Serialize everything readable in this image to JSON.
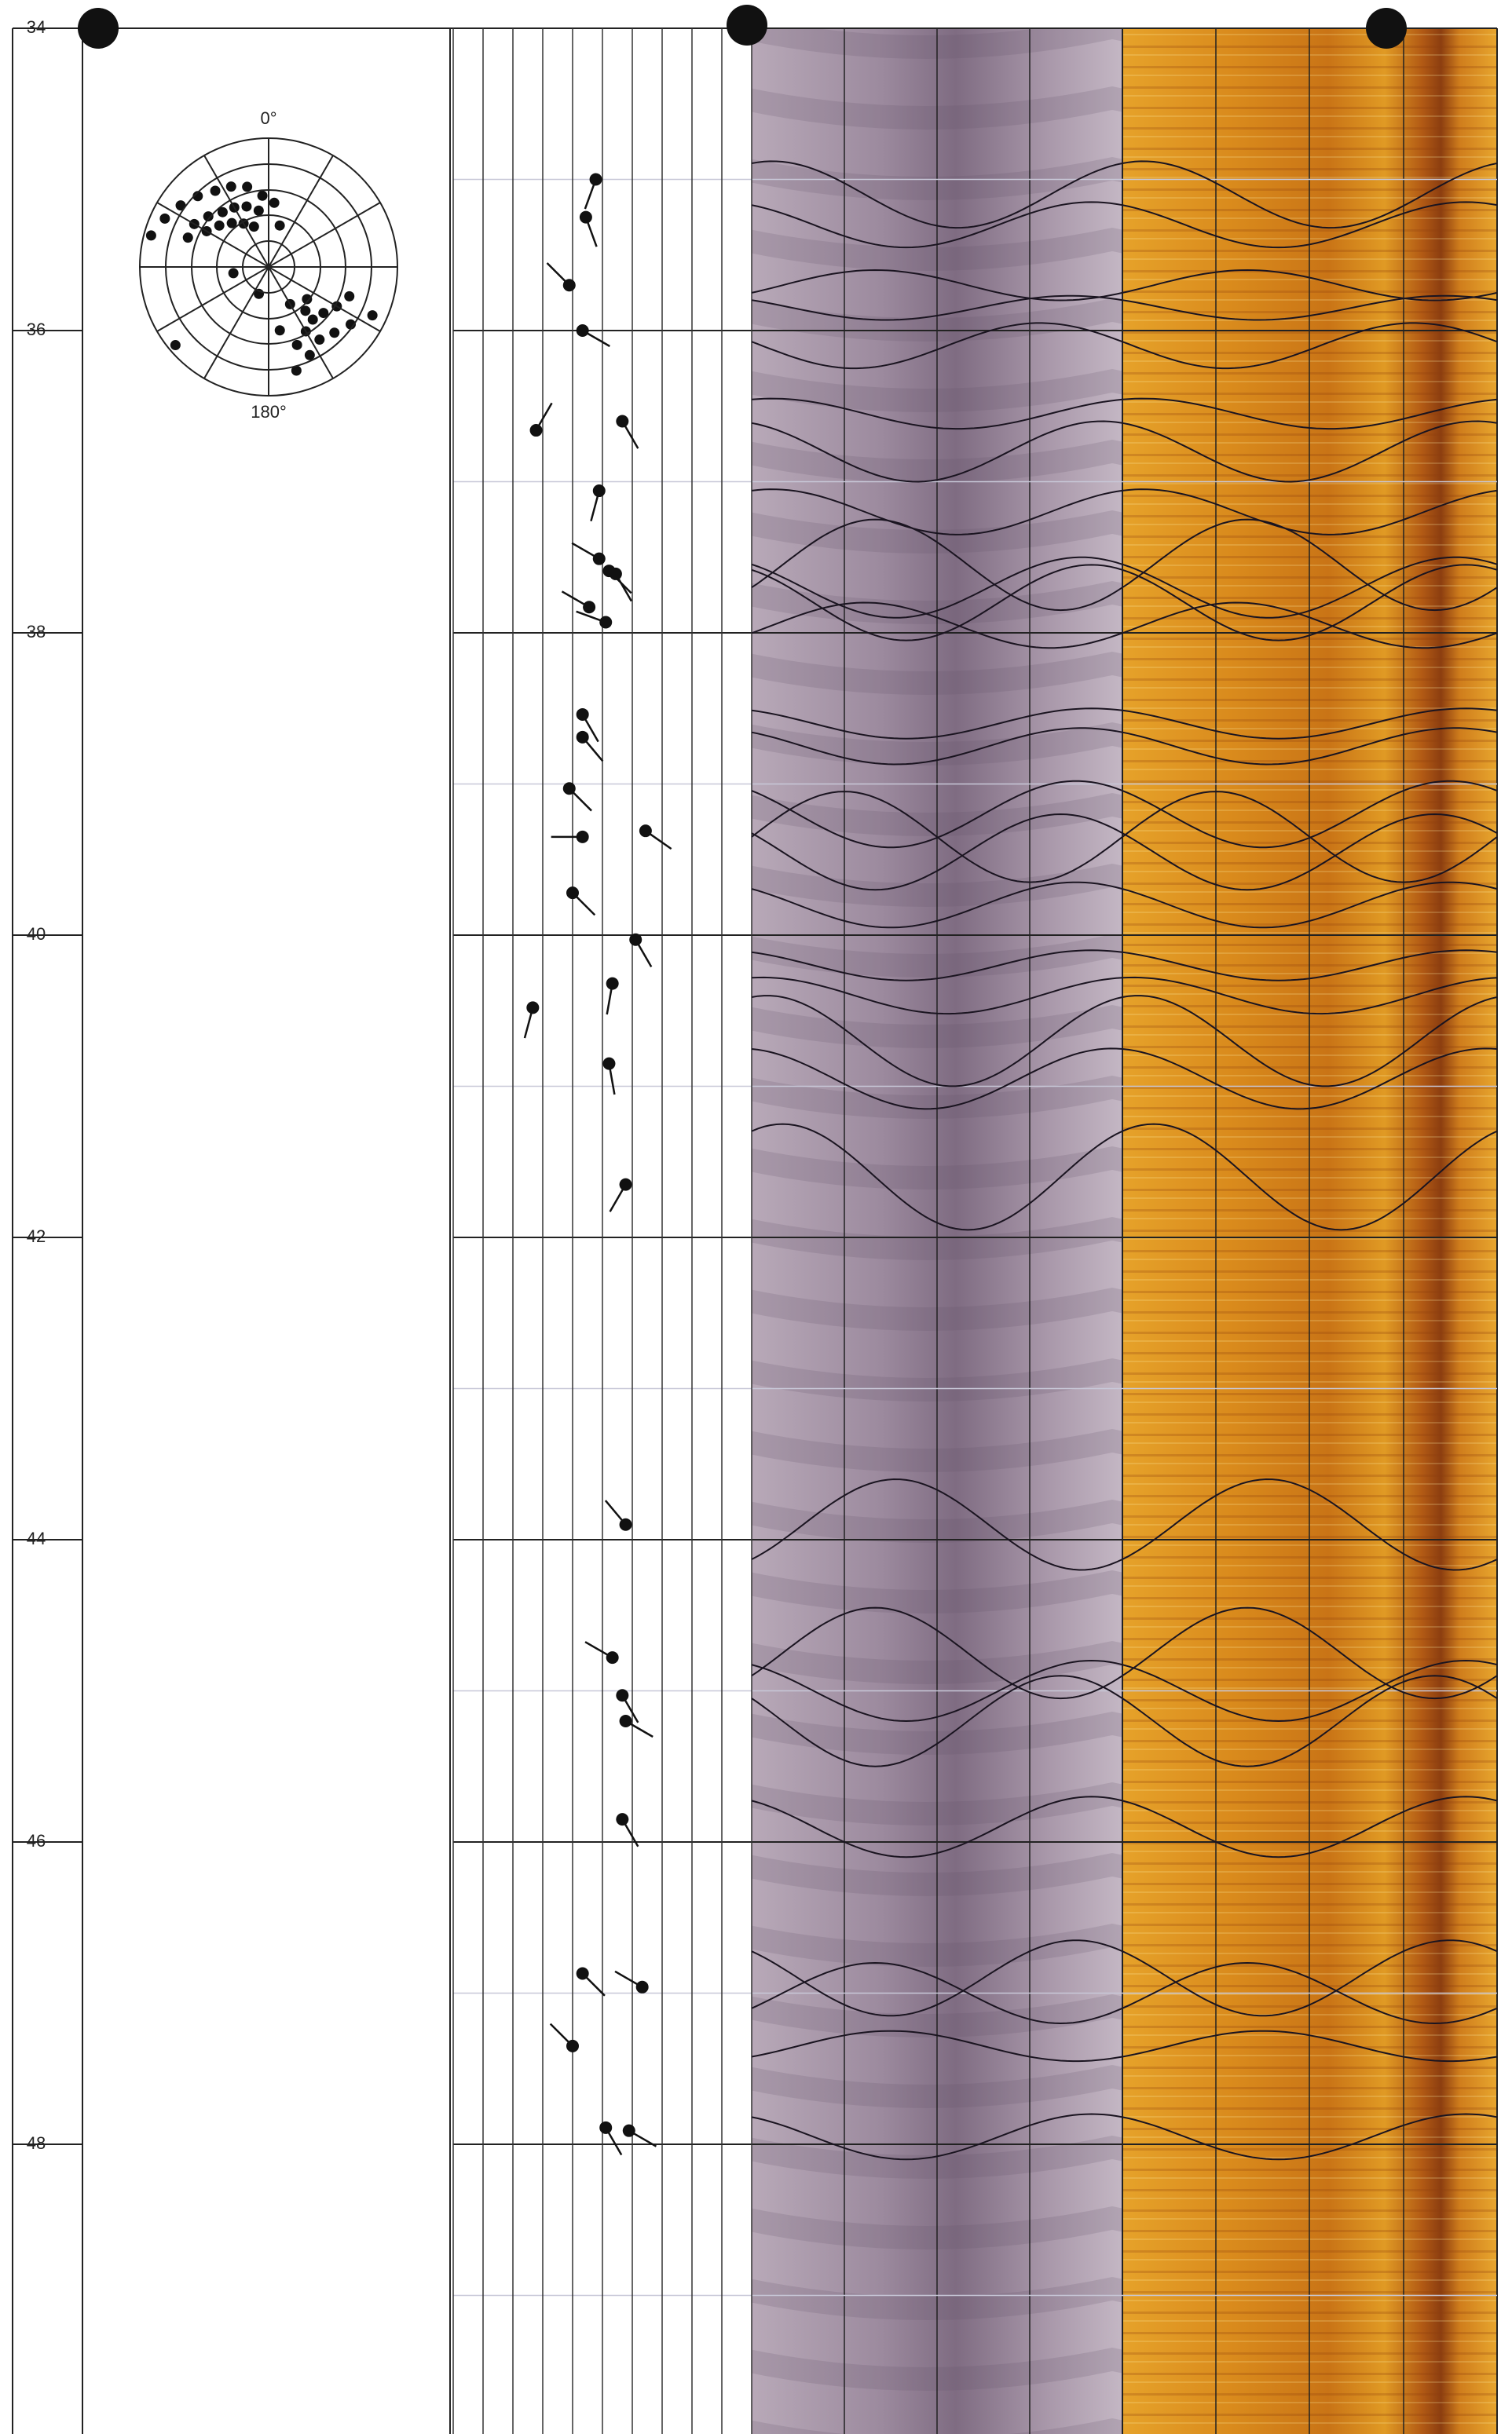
{
  "chart_data": {
    "type": "borehole-log",
    "ylim": [
      34,
      49.9
    ],
    "yticks": [
      34,
      36,
      38,
      40,
      42,
      44,
      46,
      48
    ],
    "minor_ticks": [
      35,
      37,
      39,
      41,
      43,
      45,
      47,
      49
    ],
    "xlim": [
      0,
      90
    ],
    "xticks": [
      0,
      9,
      18,
      27,
      36,
      45,
      54,
      63,
      72,
      81,
      90
    ],
    "tadpoles": {
      "depth": [
        35.0,
        35.25,
        35.7,
        36.0,
        36.66,
        36.6,
        37.06,
        37.51,
        37.59,
        37.61,
        37.83,
        37.93,
        38.54,
        38.69,
        39.03,
        39.35,
        39.31,
        39.72,
        40.03,
        40.32,
        40.48,
        40.85,
        41.65,
        43.9,
        44.78,
        45.03,
        45.2,
        45.85,
        46.87,
        46.96,
        47.35,
        47.89,
        47.91
      ],
      "dip": [
        43,
        40,
        35,
        39,
        25,
        51,
        44,
        44,
        47,
        49,
        41,
        46,
        39,
        39,
        35,
        39,
        58,
        36,
        55,
        48,
        24,
        47,
        52,
        52,
        48,
        51,
        52,
        51,
        39,
        57,
        36,
        46,
        53
      ],
      "azimuth": [
        200,
        160,
        315,
        120,
        30,
        150,
        195,
        300,
        135,
        150,
        300,
        290,
        150,
        140,
        135,
        270,
        125,
        135,
        150,
        190,
        195,
        170,
        210,
        320,
        300,
        150,
        120,
        150,
        135,
        300,
        315,
        150,
        120
      ]
    },
    "sinusoids": {
      "depth": [
        35.1,
        35.3,
        35.7,
        35.85,
        36.1,
        36.55,
        36.8,
        37.2,
        37.55,
        37.7,
        37.8,
        37.95,
        38.6,
        38.75,
        39.2,
        39.35,
        39.45,
        39.8,
        40.2,
        40.4,
        40.7,
        40.95,
        41.6,
        43.9,
        44.75,
        45.0,
        45.2,
        45.9,
        46.9,
        47.0,
        47.35,
        47.95
      ],
      "amplitude": [
        0.22,
        0.15,
        0.1,
        0.08,
        0.15,
        0.1,
        0.2,
        0.15,
        0.3,
        0.2,
        0.25,
        0.15,
        0.1,
        0.12,
        0.22,
        0.3,
        0.25,
        0.15,
        0.1,
        0.12,
        0.3,
        0.2,
        0.35,
        0.3,
        0.3,
        0.2,
        0.3,
        0.2,
        0.25,
        0.2,
        0.1,
        0.15
      ],
      "azimuth": [
        200,
        150,
        300,
        130,
        100,
        200,
        160,
        200,
        300,
        140,
        150,
        290,
        150,
        140,
        135,
        270,
        120,
        135,
        150,
        190,
        195,
        170,
        210,
        320,
        300,
        150,
        120,
        150,
        135,
        300,
        315,
        150
      ]
    },
    "stereonet": {
      "north_label": "0°",
      "south_label": "180°",
      "azimuth": [
        300,
        310,
        320,
        330,
        340,
        350,
        315,
        325,
        335,
        305,
        295,
        345,
        320,
        330,
        310,
        300,
        340,
        355,
        5,
        15,
        290,
        285,
        120,
        130,
        140,
        150,
        160,
        125,
        135,
        145,
        155,
        165,
        115,
        110,
        140,
        150,
        130,
        170,
        200,
        260,
        230
      ],
      "dip": [
        60,
        55,
        50,
        48,
        45,
        40,
        70,
        65,
        62,
        75,
        80,
        58,
        40,
        35,
        45,
        50,
        30,
        50,
        45,
        30,
        60,
        85,
        55,
        50,
        48,
        52,
        58,
        70,
        65,
        62,
        68,
        75,
        80,
        60,
        40,
        30,
        35,
        45,
        20,
        25,
        85
      ]
    }
  }
}
